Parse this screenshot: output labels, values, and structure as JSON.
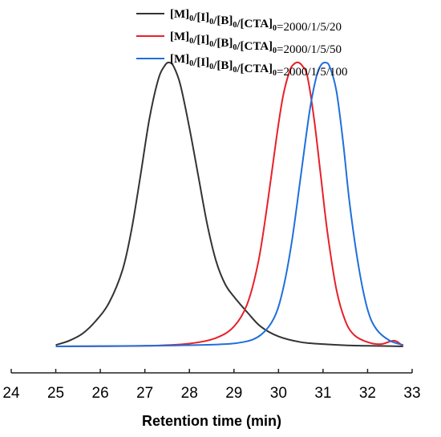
{
  "chart_data": {
    "type": "line",
    "title": "",
    "xlabel": "Retention time (min)",
    "ylabel": "",
    "xlim": [
      24,
      33
    ],
    "ylim": [
      0,
      1
    ],
    "x_ticks": [
      "24",
      "25",
      "26",
      "27",
      "28",
      "29",
      "30",
      "31",
      "32",
      "33"
    ],
    "legend_position": "top-right",
    "series": [
      {
        "name": "[M]0/[I]0/[B]0/[CTA]0=2000/1/5/20",
        "legend": {
          "sym": [
            "M",
            "I",
            "B",
            "CTA"
          ],
          "sub": "0",
          "ratio": "=2000/1/5/20"
        },
        "color": "#333333",
        "x": [
          25.0,
          25.3,
          25.6,
          25.9,
          26.2,
          26.5,
          26.7,
          26.9,
          27.1,
          27.3,
          27.45,
          27.55,
          27.65,
          27.8,
          28.0,
          28.2,
          28.4,
          28.6,
          28.8,
          29.0,
          29.3,
          29.6,
          30.0,
          30.5,
          31.0,
          31.5,
          32.0,
          32.5,
          32.8
        ],
        "y": [
          0.005,
          0.02,
          0.045,
          0.09,
          0.155,
          0.27,
          0.41,
          0.6,
          0.8,
          0.94,
          0.99,
          1.0,
          0.985,
          0.92,
          0.77,
          0.6,
          0.43,
          0.3,
          0.22,
          0.175,
          0.12,
          0.07,
          0.035,
          0.015,
          0.008,
          0.004,
          0.002,
          0.001,
          0.0
        ]
      },
      {
        "name": "[M]0/[I]0/[B]0/[CTA]0=2000/1/5/50",
        "legend": {
          "sym": [
            "M",
            "I",
            "B",
            "CTA"
          ],
          "sub": "0",
          "ratio": "=2000/1/5/50"
        },
        "color": "#e8202a",
        "x": [
          25.0,
          27.0,
          28.0,
          28.6,
          29.0,
          29.3,
          29.55,
          29.75,
          29.95,
          30.1,
          30.25,
          30.35,
          30.45,
          30.55,
          30.65,
          30.8,
          30.95,
          31.1,
          31.3,
          31.5,
          31.7,
          32.0,
          32.3,
          32.6,
          32.8
        ],
        "y": [
          0.0,
          0.002,
          0.01,
          0.03,
          0.07,
          0.15,
          0.3,
          0.5,
          0.73,
          0.88,
          0.97,
          0.995,
          1.0,
          0.985,
          0.95,
          0.8,
          0.6,
          0.4,
          0.2,
          0.09,
          0.04,
          0.015,
          0.008,
          0.02,
          0.0
        ]
      },
      {
        "name": "[M]0/[I]0/[B]0/[CTA]0=2000/1/5/100",
        "legend": {
          "sym": [
            "M",
            "I",
            "B",
            "CTA"
          ],
          "sub": "0",
          "ratio": "=2000/1/5/100"
        },
        "color": "#1f6fdc",
        "x": [
          25.0,
          27.0,
          28.5,
          29.2,
          29.6,
          29.9,
          30.1,
          30.3,
          30.5,
          30.7,
          30.85,
          30.95,
          31.05,
          31.15,
          31.3,
          31.45,
          31.6,
          31.8,
          32.0,
          32.2,
          32.5,
          32.8
        ],
        "y": [
          0.0,
          0.002,
          0.006,
          0.015,
          0.04,
          0.1,
          0.2,
          0.37,
          0.6,
          0.83,
          0.95,
          0.99,
          1.0,
          0.985,
          0.9,
          0.72,
          0.5,
          0.28,
          0.13,
          0.06,
          0.02,
          0.005
        ]
      }
    ]
  }
}
